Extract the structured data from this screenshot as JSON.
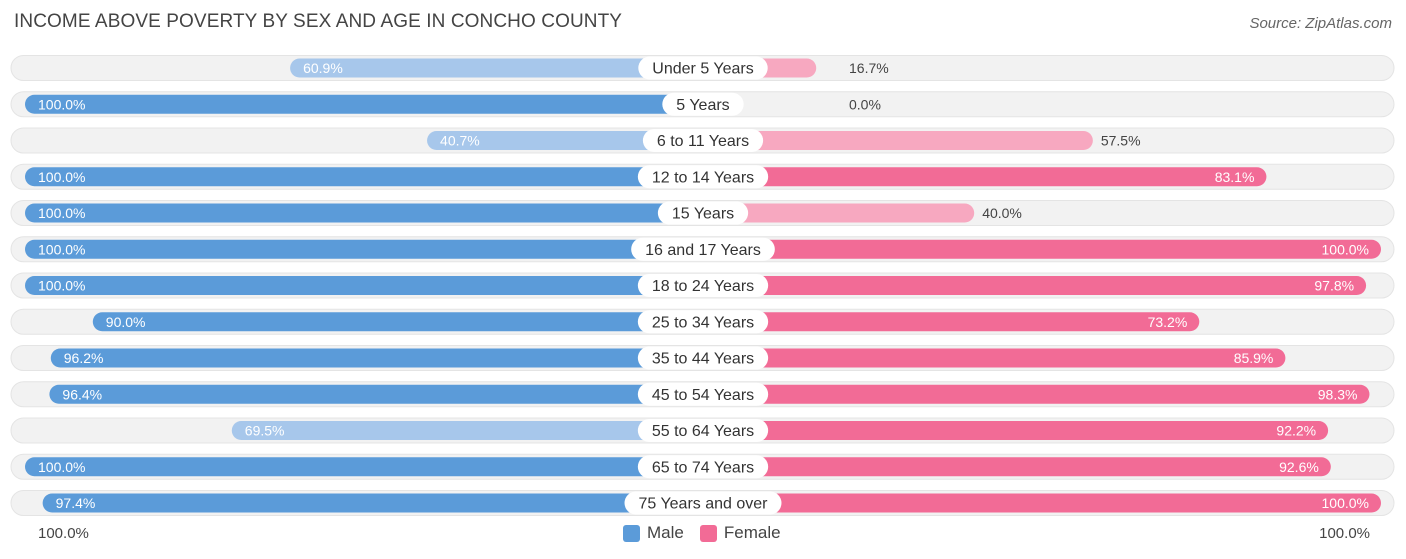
{
  "title": "INCOME ABOVE POVERTY BY SEX AND AGE IN CONCHO COUNTY",
  "source": "Source: ZipAtlas.com",
  "colors": {
    "male_strong": "#5b9bd9",
    "male_light": "#a7c7eb",
    "female_strong": "#f26b96",
    "female_light": "#f7a8c0",
    "track": "#f2f2f2"
  },
  "chart_data": {
    "type": "bar",
    "orientation": "horizontal-diverging",
    "title": "INCOME ABOVE POVERTY BY SEX AND AGE IN CONCHO COUNTY",
    "categories": [
      "Under 5 Years",
      "5 Years",
      "6 to 11 Years",
      "12 to 14 Years",
      "15 Years",
      "16 and 17 Years",
      "18 to 24 Years",
      "25 to 34 Years",
      "35 to 44 Years",
      "45 to 54 Years",
      "55 to 64 Years",
      "65 to 74 Years",
      "75 Years and over"
    ],
    "series": [
      {
        "name": "Male",
        "values": [
          60.9,
          100.0,
          40.7,
          100.0,
          100.0,
          100.0,
          100.0,
          90.0,
          96.2,
          96.4,
          69.5,
          100.0,
          97.4
        ]
      },
      {
        "name": "Female",
        "values": [
          16.7,
          0.0,
          57.5,
          83.1,
          40.0,
          100.0,
          97.8,
          73.2,
          85.9,
          98.3,
          92.2,
          92.6,
          100.0
        ]
      }
    ],
    "value_labels": {
      "male": [
        "60.9%",
        "100.0%",
        "40.7%",
        "100.0%",
        "100.0%",
        "100.0%",
        "100.0%",
        "90.0%",
        "96.2%",
        "96.4%",
        "69.5%",
        "100.0%",
        "97.4%"
      ],
      "female": [
        "16.7%",
        "0.0%",
        "57.5%",
        "83.1%",
        "40.0%",
        "100.0%",
        "97.8%",
        "73.2%",
        "85.9%",
        "98.3%",
        "92.2%",
        "92.6%",
        "100.0%"
      ]
    },
    "xlim": [
      0,
      100
    ],
    "axis_left_label": "100.0%",
    "axis_right_label": "100.0%",
    "legend": [
      "Male",
      "Female"
    ],
    "legend_position": "bottom-center"
  }
}
